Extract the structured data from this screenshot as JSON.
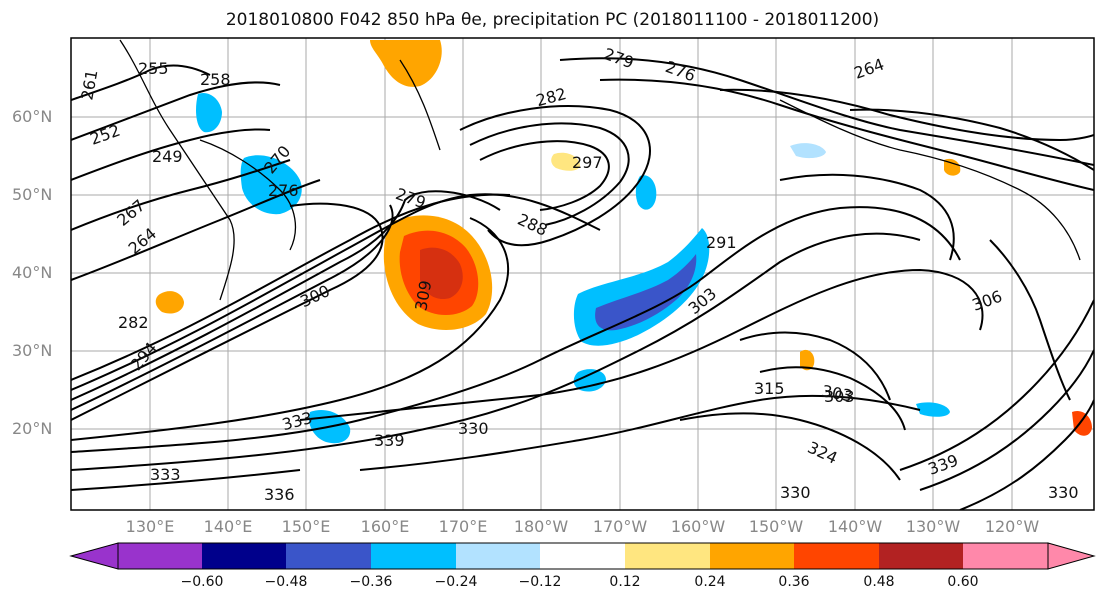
{
  "title": "2018010800 F042 850 hPa θe, precipitation PC (2018011100 - 2018011200)",
  "lat_labels": [
    "60°N",
    "50°N",
    "40°N",
    "30°N",
    "20°N"
  ],
  "lon_labels": [
    "130°E",
    "140°E",
    "150°E",
    "160°E",
    "170°E",
    "180°W",
    "170°W",
    "160°W",
    "150°W",
    "140°W",
    "130°W",
    "120°W"
  ],
  "contour_labels": [
    "261",
    "255",
    "258",
    "252",
    "249",
    "270",
    "276",
    "267",
    "264",
    "279",
    "282",
    "297",
    "279",
    "276",
    "264",
    "288",
    "291",
    "303",
    "282",
    "300",
    "309",
    "294",
    "303",
    "315",
    "303",
    "306",
    "333",
    "339",
    "330",
    "324",
    "339",
    "333",
    "336",
    "330",
    "330"
  ],
  "colorbar": {
    "ticks": [
      "−0.60",
      "−0.48",
      "−0.36",
      "−0.24",
      "−0.12",
      "0.12",
      "0.24",
      "0.36",
      "0.48",
      "0.60"
    ],
    "colors": [
      "#9933cc",
      "#00008b",
      "#3a55c9",
      "#00bfff",
      "#b2e2ff",
      "#ffffff",
      "#ffe680",
      "#ffa500",
      "#ff4500",
      "#b22222",
      "#ff88aa"
    ]
  }
}
